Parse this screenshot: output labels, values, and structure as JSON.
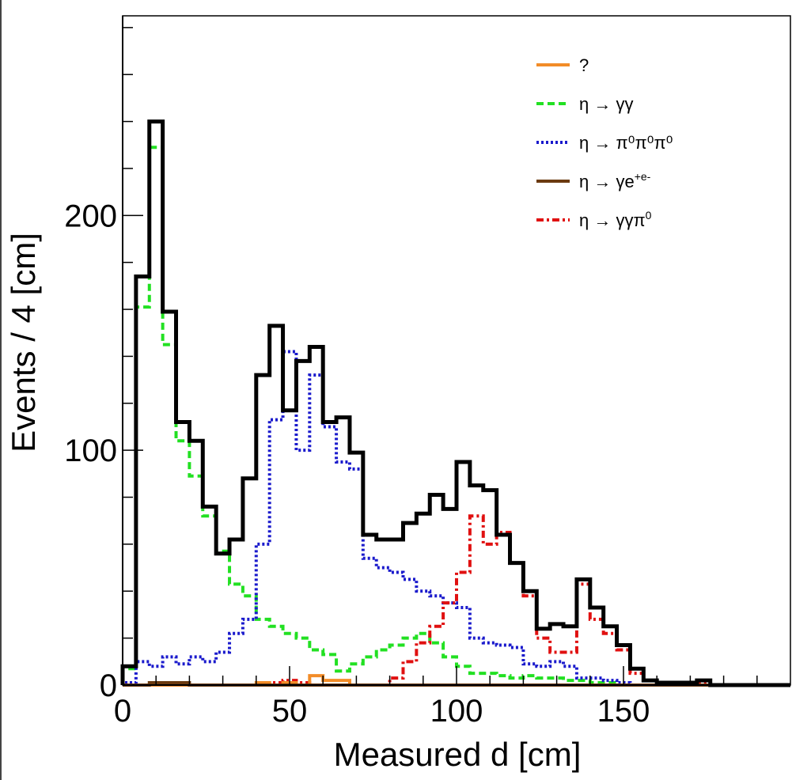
{
  "chart_data": {
    "type": "histogram",
    "title": "",
    "xlabel": "Measured d [cm]",
    "ylabel": "Events / 4 [cm]",
    "xlim": [
      0,
      200
    ],
    "ylim": [
      0,
      285
    ],
    "bin_width": 4,
    "x_ticks": [
      0,
      50,
      100,
      150
    ],
    "x_tick_labels": [
      "0",
      "50",
      "100",
      "150"
    ],
    "y_ticks": [
      0,
      100,
      200
    ],
    "y_tick_labels": [
      "0",
      "100",
      "200"
    ],
    "bin_edges": [
      0,
      4,
      8,
      12,
      16,
      20,
      24,
      28,
      32,
      36,
      40,
      44,
      48,
      52,
      56,
      60,
      64,
      68,
      72,
      76,
      80,
      84,
      88,
      92,
      96,
      100,
      104,
      108,
      112,
      116,
      120,
      124,
      128,
      132,
      136,
      140,
      144,
      148,
      152,
      156,
      160,
      164,
      168,
      172,
      176,
      180,
      184,
      188,
      192,
      196,
      200
    ],
    "total": {
      "name": "total",
      "color": "#000000",
      "values": [
        8,
        174,
        240,
        159,
        112,
        104,
        76,
        56,
        62,
        88,
        132,
        153,
        117,
        138,
        144,
        112,
        114,
        99,
        64,
        62,
        62,
        69,
        73,
        81,
        75,
        95,
        85,
        83,
        64,
        52,
        40,
        24,
        26,
        25,
        45,
        33,
        25,
        17,
        7,
        2,
        1,
        1,
        1,
        2,
        0,
        0,
        0,
        0,
        0,
        0
      ]
    },
    "legend_position": "top-right",
    "series": [
      {
        "name": "?",
        "legend": {
          "base": "?",
          "sup": ""
        },
        "color": "#f28c28",
        "dash": "solid",
        "values": [
          0,
          0,
          0,
          0,
          0,
          0,
          0,
          0,
          0,
          0,
          1,
          0,
          1,
          0,
          4,
          2,
          2,
          0,
          0,
          0,
          0,
          0,
          0,
          0,
          0,
          0,
          0,
          0,
          0,
          0,
          0,
          0,
          0,
          0,
          0,
          0,
          0,
          0,
          0,
          0,
          0,
          0,
          0,
          0,
          0,
          0,
          0,
          0,
          0,
          0
        ]
      },
      {
        "name": "η → γγ",
        "legend": {
          "base": "η → γγ",
          "sup": ""
        },
        "color": "#22e022",
        "dash": "dashed",
        "values": [
          7,
          161,
          229,
          145,
          104,
          89,
          72,
          57,
          43,
          38,
          28,
          25,
          22,
          20,
          15,
          13,
          6,
          9,
          12,
          15,
          17,
          20,
          22,
          18,
          12,
          8,
          5,
          5,
          4,
          3,
          4,
          3,
          3,
          2,
          2,
          1,
          1,
          0,
          0,
          0,
          0,
          0,
          0,
          0,
          0,
          0,
          0,
          0,
          0,
          0
        ]
      },
      {
        "name": "η → π⁰π⁰π⁰",
        "legend": {
          "base": "η → π⁰π⁰π⁰",
          "sup": ""
        },
        "color": "#1a1acc",
        "dash": "dotted",
        "values": [
          1,
          10,
          8,
          12,
          9,
          12,
          10,
          14,
          22,
          28,
          60,
          113,
          142,
          100,
          132,
          110,
          95,
          92,
          54,
          50,
          48,
          45,
          40,
          38,
          35,
          33,
          20,
          18,
          17,
          16,
          9,
          8,
          10,
          8,
          3,
          3,
          2,
          1,
          0,
          0,
          0,
          0,
          0,
          0,
          0,
          0,
          0,
          0,
          0,
          0
        ]
      },
      {
        "name": "η → γe⁺e⁻",
        "legend": {
          "base": "η → γe",
          "sup": "+e-"
        },
        "color": "#6b3a10",
        "dash": "solid",
        "values": [
          0,
          0,
          1,
          1,
          1,
          0,
          0,
          0,
          0,
          0,
          0,
          0,
          0,
          0,
          0,
          0,
          0,
          0,
          0,
          0,
          0,
          0,
          0,
          0,
          0,
          0,
          0,
          0,
          0,
          0,
          0,
          0,
          0,
          0,
          0,
          0,
          0,
          0,
          0,
          0,
          0,
          0,
          0,
          0,
          0,
          0,
          0,
          0,
          0,
          0
        ]
      },
      {
        "name": "η → γγπ⁰",
        "legend": {
          "base": "η → γγπ",
          "sup": "0"
        },
        "color": "#e01010",
        "dash": "dashdot",
        "values": [
          0,
          0,
          0,
          0,
          0,
          0,
          0,
          0,
          0,
          0,
          0,
          1,
          2,
          1,
          0,
          0,
          0,
          0,
          0,
          0,
          3,
          10,
          18,
          25,
          35,
          48,
          72,
          60,
          65,
          52,
          38,
          20,
          14,
          14,
          43,
          28,
          22,
          15,
          5,
          2,
          1,
          1,
          1,
          1,
          0,
          0,
          0,
          0,
          0,
          0
        ]
      }
    ]
  }
}
